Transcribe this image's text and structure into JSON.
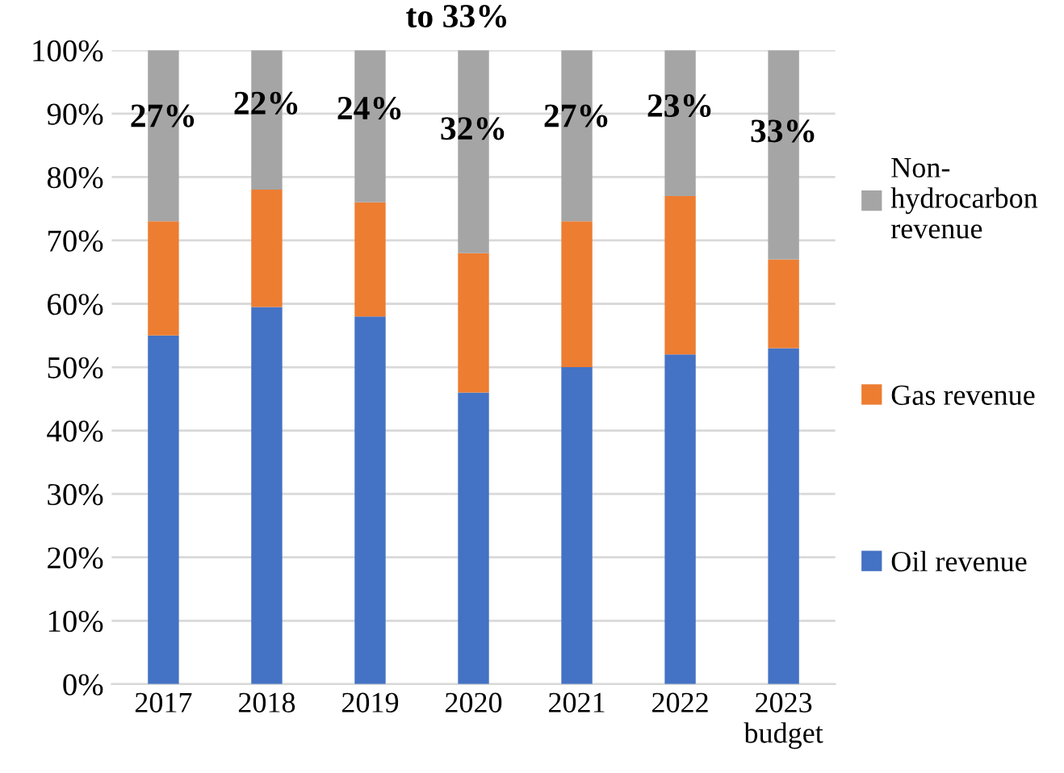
{
  "chart_data": {
    "type": "bar",
    "title": "to 33%",
    "stacked": true,
    "categories": [
      "2017",
      "2018",
      "2019",
      "2020",
      "2021",
      "2022",
      "2023 budget"
    ],
    "series": [
      {
        "name": "Oil revenue",
        "color": "#4472c4",
        "values": [
          55,
          59.5,
          58,
          46,
          50,
          52,
          53
        ]
      },
      {
        "name": "Gas revenue",
        "color": "#ed7d31",
        "values": [
          18,
          18.5,
          18,
          22,
          23,
          25,
          14
        ]
      },
      {
        "name": "Non-hydrocarbon revenue",
        "color": "#a5a5a5",
        "values": [
          27,
          22,
          24,
          32,
          27,
          23,
          33
        ],
        "value_labels": [
          "27%",
          "22%",
          "24%",
          "32%",
          "27%",
          "23%",
          "33%"
        ]
      }
    ],
    "ylim": [
      0,
      100
    ],
    "yticks": [
      {
        "value": 0,
        "label": "0%"
      },
      {
        "value": 10,
        "label": "10%"
      },
      {
        "value": 20,
        "label": "20%"
      },
      {
        "value": 30,
        "label": "30%"
      },
      {
        "value": 40,
        "label": "40%"
      },
      {
        "value": 50,
        "label": "50%"
      },
      {
        "value": 60,
        "label": "60%"
      },
      {
        "value": 70,
        "label": "70%"
      },
      {
        "value": 80,
        "label": "80%"
      },
      {
        "value": 90,
        "label": "90%"
      },
      {
        "value": 100,
        "label": "100%"
      }
    ],
    "grid": "y",
    "legend": "right"
  }
}
